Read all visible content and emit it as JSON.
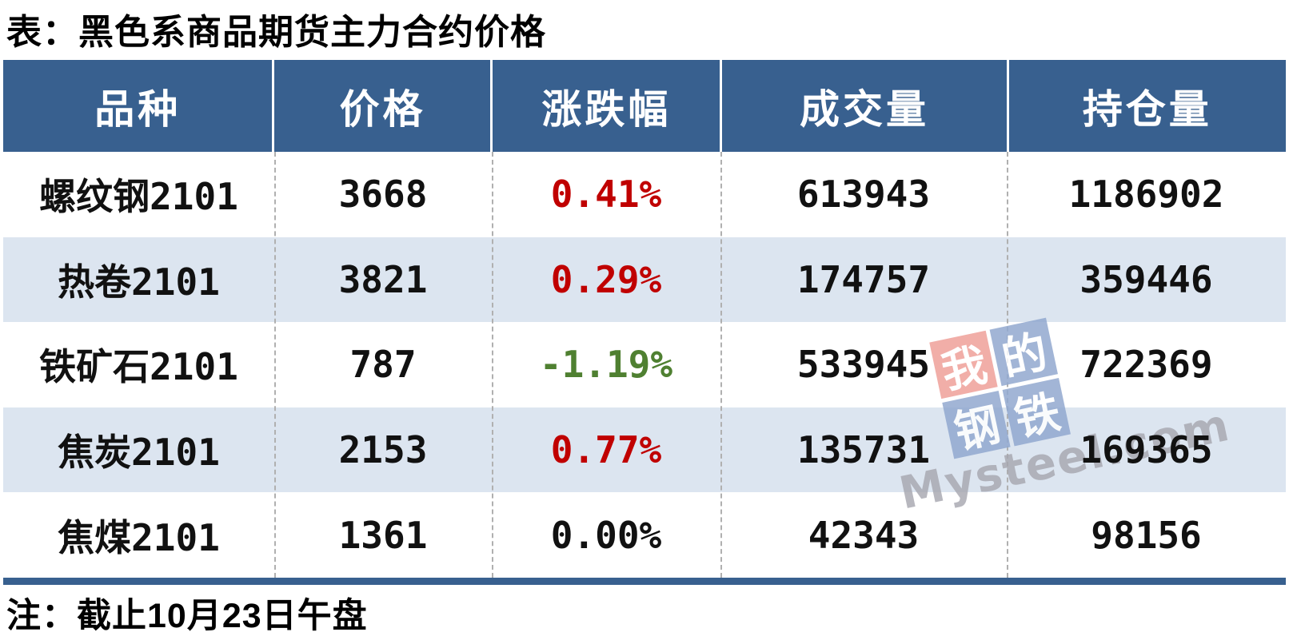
{
  "page": {
    "title": "表：黑色系商品期货主力合约价格",
    "note": "注：截止10月23日午盘"
  },
  "colors": {
    "header_bg": "#38608f",
    "row_alt_bg": "#dce5f0",
    "up": "#c00000",
    "down": "#4f8031",
    "flat": "#111111"
  },
  "watermark": {
    "squares": [
      {
        "char": "我",
        "bg": "#efa09a"
      },
      {
        "char": "的",
        "bg": "#92a9d0"
      },
      {
        "char": "钢",
        "bg": "#92a9d0"
      },
      {
        "char": "铁",
        "bg": "#92a9d0"
      }
    ],
    "text": "Mysteel.com"
  },
  "chart_data": {
    "type": "table",
    "title": "表：黑色系商品期货主力合约价格",
    "note": "注：截止10月23日午盘",
    "headers": [
      "品种",
      "价格",
      "涨跌幅",
      "成交量",
      "持仓量"
    ],
    "rows": [
      {
        "cells": [
          "螺纹钢2101",
          "3668",
          "0.41%",
          "613943",
          "1186902"
        ],
        "trend": "up"
      },
      {
        "cells": [
          "热卷2101",
          "3821",
          "0.29%",
          "174757",
          "359446"
        ],
        "trend": "up"
      },
      {
        "cells": [
          "铁矿石2101",
          "787",
          "-1.19%",
          "533945",
          "722369"
        ],
        "trend": "down"
      },
      {
        "cells": [
          "焦炭2101",
          "2153",
          "0.77%",
          "135731",
          "169365"
        ],
        "trend": "up"
      },
      {
        "cells": [
          "焦煤2101",
          "1361",
          "0.00%",
          "42343",
          "98156"
        ],
        "trend": "flat"
      }
    ]
  }
}
